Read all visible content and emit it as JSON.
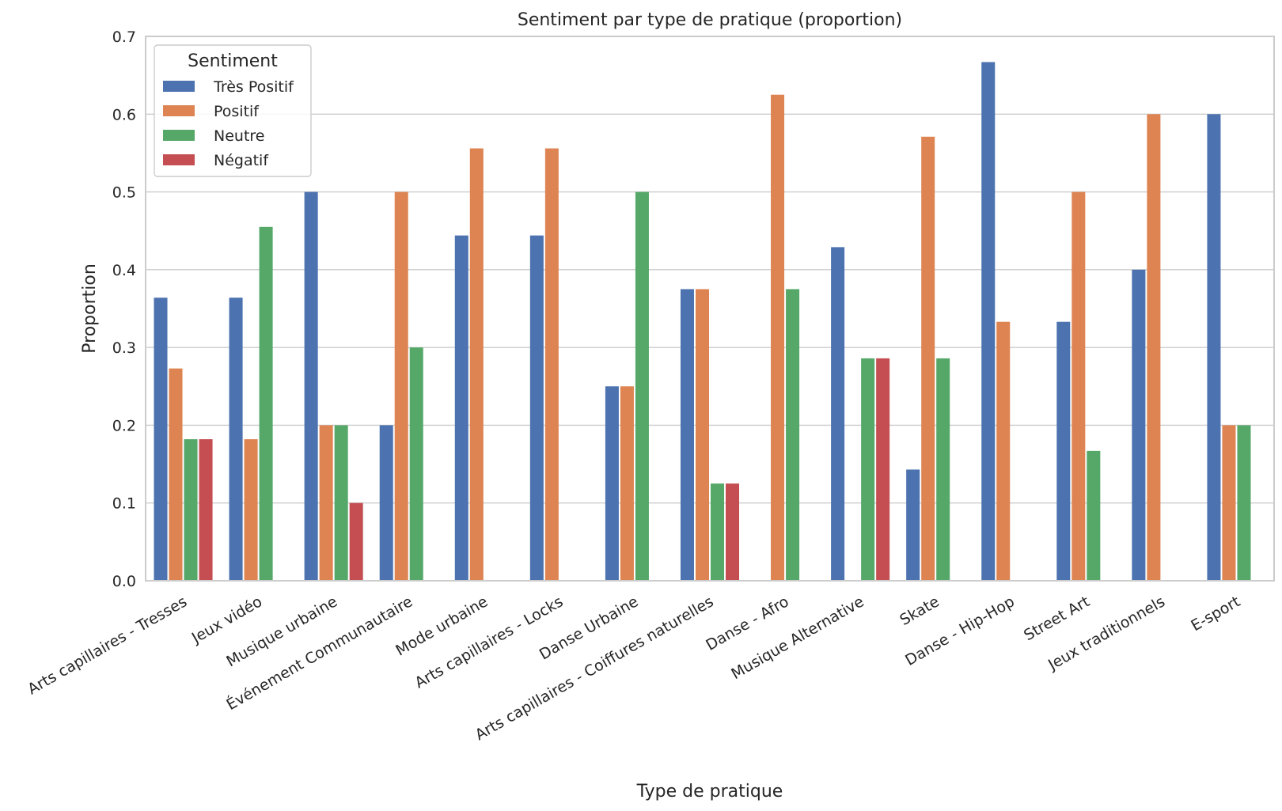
{
  "chart_data": {
    "type": "bar",
    "title": "Sentiment par type de pratique (proportion)",
    "xlabel": "Type de pratique",
    "ylabel": "Proportion",
    "ylim": [
      0,
      0.7
    ],
    "yticks": [
      "0.0",
      "0.1",
      "0.2",
      "0.3",
      "0.4",
      "0.5",
      "0.6",
      "0.7"
    ],
    "grid": true,
    "legend": {
      "title": "Sentiment",
      "placement": "top-left"
    },
    "categories": [
      "Arts capillaires - Tresses",
      "Jeux vidéo",
      "Musique urbaine",
      "Événement Communautaire",
      "Mode urbaine",
      "Arts capillaires - Locks",
      "Danse Urbaine",
      "Arts capillaires - Coiffures naturelles",
      "Danse - Afro",
      "Musique Alternative",
      "Skate",
      "Danse - Hip-Hop",
      "Street Art",
      "Jeux traditionnels",
      "E-sport"
    ],
    "series": [
      {
        "name": "Très Positif",
        "color": "#4c72b0",
        "values": [
          0.364,
          0.364,
          0.5,
          0.2,
          0.444,
          0.444,
          0.25,
          0.375,
          0,
          0.429,
          0.143,
          0.667,
          0.333,
          0.4,
          0.6
        ]
      },
      {
        "name": "Positif",
        "color": "#dd8452",
        "values": [
          0.273,
          0.182,
          0.2,
          0.5,
          0.556,
          0.556,
          0.25,
          0.375,
          0.625,
          0,
          0.571,
          0.333,
          0.5,
          0.6,
          0.2
        ]
      },
      {
        "name": "Neutre",
        "color": "#55a868",
        "values": [
          0.182,
          0.455,
          0.2,
          0.3,
          0,
          0,
          0.5,
          0.125,
          0.375,
          0.286,
          0.286,
          0,
          0.167,
          0,
          0.2
        ]
      },
      {
        "name": "Négatif",
        "color": "#c44e52",
        "values": [
          0.182,
          0,
          0.1,
          0,
          0,
          0,
          0,
          0.125,
          0,
          0.286,
          0,
          0,
          0,
          0,
          0
        ]
      }
    ]
  }
}
